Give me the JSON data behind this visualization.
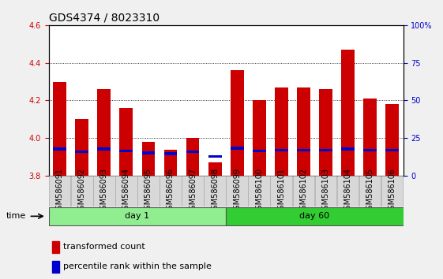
{
  "title": "GDS4374 / 8023310",
  "samples": [
    "GSM586091",
    "GSM586092",
    "GSM586093",
    "GSM586094",
    "GSM586095",
    "GSM586096",
    "GSM586097",
    "GSM586098",
    "GSM586099",
    "GSM586100",
    "GSM586101",
    "GSM586102",
    "GSM586103",
    "GSM586104",
    "GSM586105",
    "GSM586106"
  ],
  "red_values": [
    4.3,
    4.1,
    4.26,
    4.16,
    3.98,
    3.94,
    4.0,
    3.87,
    4.36,
    4.2,
    4.27,
    4.27,
    4.26,
    4.47,
    4.21,
    4.18
  ],
  "blue_values": [
    3.935,
    3.92,
    3.935,
    3.925,
    3.915,
    3.91,
    3.92,
    3.895,
    3.94,
    3.925,
    3.93,
    3.93,
    3.93,
    3.935,
    3.93,
    3.93
  ],
  "ylim_left": [
    3.8,
    4.6
  ],
  "ylim_right": [
    0,
    100
  ],
  "bar_color": "#cc0000",
  "blue_color": "#0000cc",
  "bar_width": 0.6,
  "day1_color": "#90ee90",
  "day60_color": "#32cd32",
  "title_fontsize": 10,
  "tick_fontsize": 7,
  "label_fontsize": 8,
  "n_day1": 8,
  "n_day60": 8
}
